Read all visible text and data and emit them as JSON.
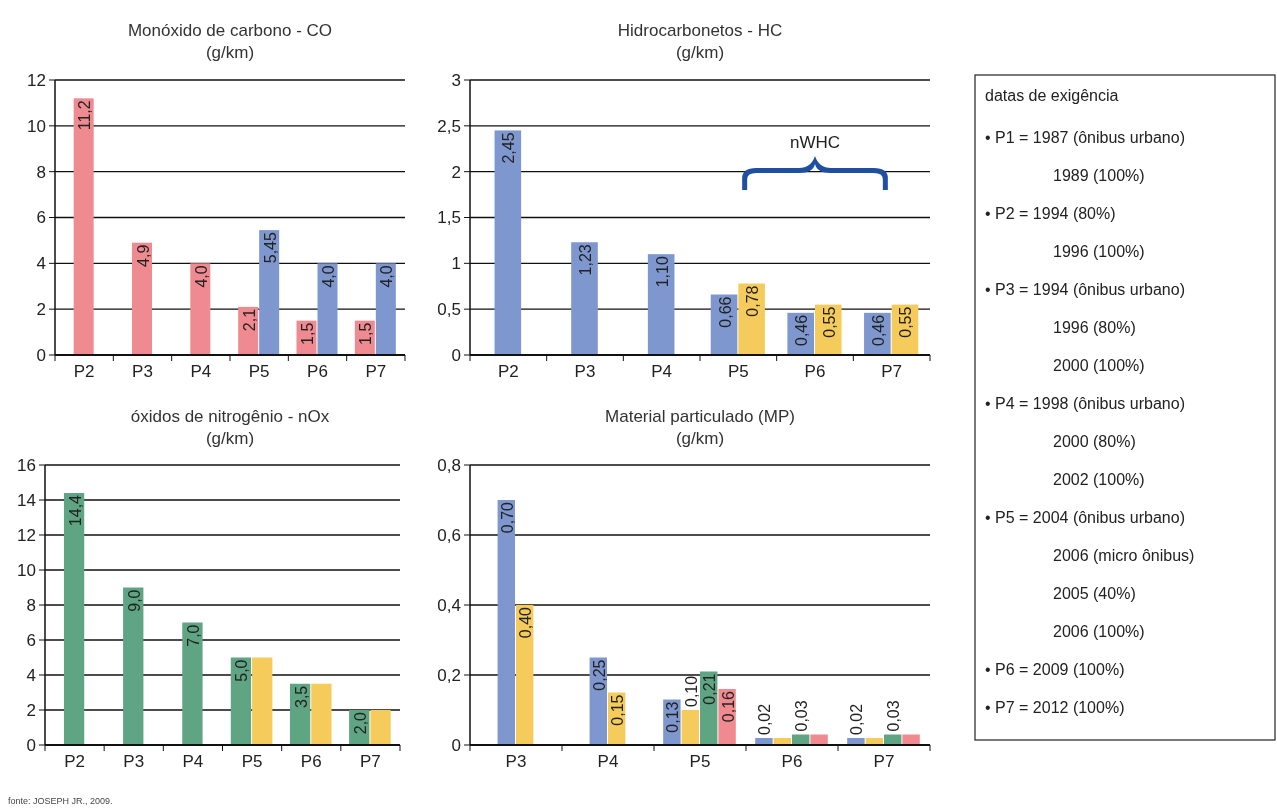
{
  "chart_data": [
    {
      "type": "bar",
      "title": "Monóxido de carbono - CO",
      "subtitle": "(g/km)",
      "categories": [
        "P2",
        "P3",
        "P4",
        "P5",
        "P6",
        "P7"
      ],
      "series": [
        {
          "color": "#ef8a90",
          "values": [
            11.2,
            4.9,
            4.0,
            2.1,
            1.5,
            1.5
          ],
          "value_labels": [
            "11,2",
            "4,9",
            "4,0",
            "2,1",
            "1,5",
            "1,5"
          ]
        },
        {
          "color": "#7f97cf",
          "values": [
            null,
            null,
            null,
            5.45,
            4.0,
            4.0
          ],
          "value_labels": [
            null,
            null,
            null,
            "5,45",
            "4,0",
            "4,0"
          ]
        }
      ],
      "ylim": [
        0,
        12
      ],
      "yticks": [
        0,
        2,
        4,
        6,
        8,
        10,
        12
      ],
      "grid": "y"
    },
    {
      "type": "bar",
      "title": "Hidrocarbonetos - HC",
      "subtitle": "(g/km)",
      "categories": [
        "P2",
        "P3",
        "P4",
        "P5",
        "P6",
        "P7"
      ],
      "series": [
        {
          "color": "#7f97cf",
          "values": [
            2.45,
            1.23,
            1.1,
            0.66,
            0.46,
            0.46
          ],
          "value_labels": [
            "2,45",
            "1,23",
            "1,10",
            "0,66",
            "0,46",
            "0,46"
          ]
        },
        {
          "color": "#f5cc5c",
          "values": [
            null,
            null,
            null,
            0.78,
            0.55,
            0.55
          ],
          "value_labels": [
            null,
            null,
            null,
            "0,78",
            "0,55",
            "0,55"
          ]
        }
      ],
      "ylim": [
        0,
        3
      ],
      "yticks": [
        0,
        {
          "value": 0.5,
          "label": "0,5"
        },
        1,
        {
          "value": 1.5,
          "label": "1,5"
        },
        2,
        {
          "value": 2.5,
          "label": "2,5"
        },
        3
      ],
      "grid": "y",
      "annotations": [
        "nWHC"
      ]
    },
    {
      "type": "bar",
      "title": "óxidos de nitrogênio - nOx",
      "subtitle": "(g/km)",
      "categories": [
        "P2",
        "P3",
        "P4",
        "P5",
        "P6",
        "P7"
      ],
      "series": [
        {
          "color": "#5fa483",
          "values": [
            14.4,
            9.0,
            7.0,
            5.0,
            3.5,
            2.0
          ],
          "value_labels": [
            "14,4",
            "9,0",
            "7,0",
            "5,0",
            "3,5",
            "2,0"
          ]
        },
        {
          "color": "#f5cc5c",
          "values": [
            null,
            null,
            null,
            5.0,
            3.5,
            2.0
          ],
          "value_labels": [
            null,
            null,
            null,
            null,
            null,
            null
          ]
        }
      ],
      "ylim": [
        0,
        16
      ],
      "yticks": [
        0,
        2,
        4,
        6,
        8,
        10,
        12,
        14,
        16
      ],
      "grid": "y",
      "annotations": [
        "fonte: JOSEPH JR., 2009."
      ]
    },
    {
      "type": "bar",
      "title": "Material particulado (MP)",
      "subtitle": "(g/km)",
      "categories": [
        "P3",
        "P4",
        "P5",
        "P6",
        "P7"
      ],
      "series": [
        {
          "color": "#7f97cf",
          "values": [
            0.7,
            0.25,
            0.13,
            0.02,
            0.02
          ],
          "value_labels": [
            "0,70",
            "0,25",
            "0,13",
            "0,02",
            "0,02"
          ]
        },
        {
          "color": "#f5cc5c",
          "values": [
            0.4,
            0.15,
            0.1,
            0.02,
            0.02
          ],
          "value_labels": [
            "0,40",
            "0,15",
            "0,10",
            null,
            null
          ]
        },
        {
          "color": "#5fa483",
          "values": [
            null,
            null,
            0.21,
            0.03,
            0.03
          ],
          "value_labels": [
            null,
            null,
            "0,21",
            "0,03",
            "0,03"
          ]
        },
        {
          "color": "#ef8a90",
          "values": [
            null,
            null,
            0.16,
            0.03,
            0.03
          ],
          "value_labels": [
            null,
            null,
            "0,16",
            null,
            null
          ]
        }
      ],
      "ylim": [
        0,
        0.8
      ],
      "yticks": [
        0,
        {
          "value": 0.2,
          "label": "0,2"
        },
        {
          "value": 0.4,
          "label": "0,4"
        },
        {
          "value": 0.6,
          "label": "0,6"
        },
        {
          "value": 0.8,
          "label": "0,8"
        }
      ],
      "grid": "y"
    },
    {
      "type": "other",
      "title": "datas de exigência",
      "annotations": [
        "• P1 = 1987 (ônibus urbano)\n1989 (100%)",
        "• P2 = 1994 (80%)\n1996 (100%)",
        "• P3 = 1994 (ônibus urbano)\n1996 (80%)\n2000 (100%)",
        "• P4 = 1998 (ônibus urbano)\n2000 (80%)\n2002 (100%)",
        "• P5 = 2004 (ônibus urbano)\n2006 (micro ônibus)\n2005 (40%)\n2006 (100%)",
        "• P6 = 2009 (100%)",
        "• P7 = 2012 (100%)"
      ]
    }
  ]
}
